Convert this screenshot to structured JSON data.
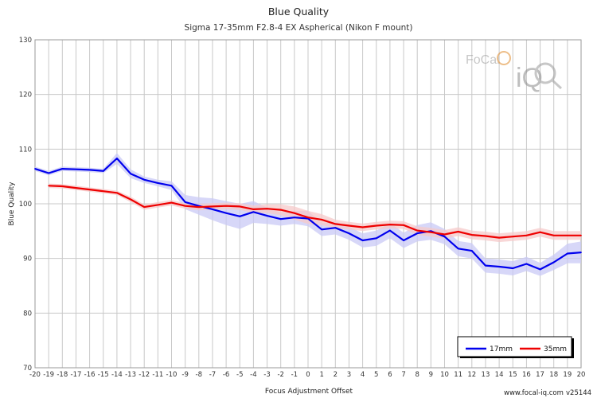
{
  "chart_data": {
    "type": "line",
    "title": "Blue Quality",
    "subtitle": "Sigma 17-35mm F2.8-4 EX Aspherical (Nikon F mount)",
    "xlabel": "Focus Adjustment Offset",
    "ylabel": "Blue Quality",
    "xlim": [
      -20,
      20
    ],
    "ylim": [
      70,
      130
    ],
    "xticks": [
      -20,
      -19,
      -18,
      -17,
      -16,
      -15,
      -14,
      -13,
      -12,
      -11,
      -10,
      -9,
      -8,
      -7,
      -6,
      -5,
      -4,
      -3,
      -2,
      -1,
      0,
      1,
      2,
      3,
      4,
      5,
      6,
      7,
      8,
      9,
      10,
      11,
      12,
      13,
      14,
      15,
      16,
      17,
      18,
      19,
      20
    ],
    "yticks": [
      70,
      80,
      90,
      100,
      110,
      120,
      130
    ],
    "grid": true,
    "legend_position": "bottom-right",
    "series": [
      {
        "name": "17mm",
        "color": "#0000ee",
        "band_color": "#c9c9f5",
        "x": [
          -20,
          -19,
          -18,
          -17,
          -16,
          -15,
          -14,
          -13,
          -12,
          -11,
          -10,
          -9,
          -8,
          -7,
          -6,
          -5,
          -4,
          -3,
          -2,
          -1,
          0,
          1,
          2,
          3,
          4,
          5,
          6,
          7,
          8,
          9,
          10,
          11,
          12,
          13,
          14,
          15,
          16,
          17,
          18,
          19,
          20
        ],
        "y": [
          106.4,
          105.6,
          106.4,
          106.3,
          106.2,
          106.0,
          108.3,
          105.5,
          104.4,
          103.8,
          103.3,
          100.3,
          99.6,
          99.0,
          98.3,
          97.7,
          98.5,
          97.8,
          97.2,
          97.5,
          97.3,
          95.3,
          95.6,
          94.6,
          93.3,
          93.7,
          95.1,
          93.3,
          94.6,
          95.0,
          94.0,
          91.8,
          91.4,
          88.7,
          88.5,
          88.2,
          89.0,
          88.0,
          89.3,
          90.9,
          91.1
        ],
        "band": [
          0.4,
          0.4,
          0.4,
          0.4,
          0.4,
          0.4,
          1.0,
          0.8,
          0.6,
          0.6,
          0.8,
          1.3,
          1.6,
          2.0,
          2.2,
          2.3,
          2.0,
          1.5,
          1.2,
          1.2,
          1.4,
          1.2,
          1.2,
          1.2,
          1.3,
          1.4,
          1.4,
          1.4,
          1.5,
          1.6,
          1.4,
          1.4,
          1.4,
          1.3,
          1.3,
          1.3,
          1.3,
          1.2,
          1.4,
          1.8,
          2.0
        ]
      },
      {
        "name": "35mm",
        "color": "#ee0000",
        "band_color": "#f5c9c9",
        "x": [
          -19,
          -18,
          -17,
          -16,
          -15,
          -14,
          -13,
          -12,
          -11,
          -10,
          -9,
          -8,
          -7,
          -6,
          -5,
          -4,
          -3,
          -2,
          -1,
          0,
          1,
          2,
          3,
          4,
          5,
          6,
          7,
          8,
          9,
          10,
          11,
          12,
          13,
          14,
          15,
          16,
          17,
          18,
          19,
          20
        ],
        "y": [
          103.3,
          103.2,
          102.9,
          102.6,
          102.3,
          102.0,
          100.8,
          99.4,
          99.8,
          100.2,
          99.6,
          99.4,
          99.5,
          99.6,
          99.5,
          99.0,
          99.1,
          98.9,
          98.3,
          97.5,
          97.1,
          96.3,
          96.0,
          95.7,
          96.0,
          96.2,
          96.1,
          95.1,
          94.8,
          94.4,
          94.9,
          94.3,
          94.1,
          93.8,
          94.0,
          94.2,
          94.8,
          94.2,
          94.2,
          94.2
        ],
        "band": [
          0.4,
          0.4,
          0.4,
          0.4,
          0.4,
          0.4,
          0.5,
          0.5,
          0.5,
          0.5,
          0.5,
          0.6,
          0.6,
          0.6,
          0.6,
          0.7,
          0.8,
          1.0,
          1.2,
          1.2,
          1.0,
          0.8,
          0.7,
          0.7,
          0.7,
          0.7,
          0.7,
          0.8,
          0.8,
          0.8,
          0.8,
          0.8,
          0.8,
          0.8,
          0.8,
          0.8,
          0.8,
          0.8,
          0.8,
          0.8
        ]
      }
    ]
  },
  "watermark": {
    "brand_top": "FoCal",
    "brand_bottom": "iQ"
  },
  "footer": {
    "site": "www.focal-iq.com",
    "version": "v25144"
  }
}
